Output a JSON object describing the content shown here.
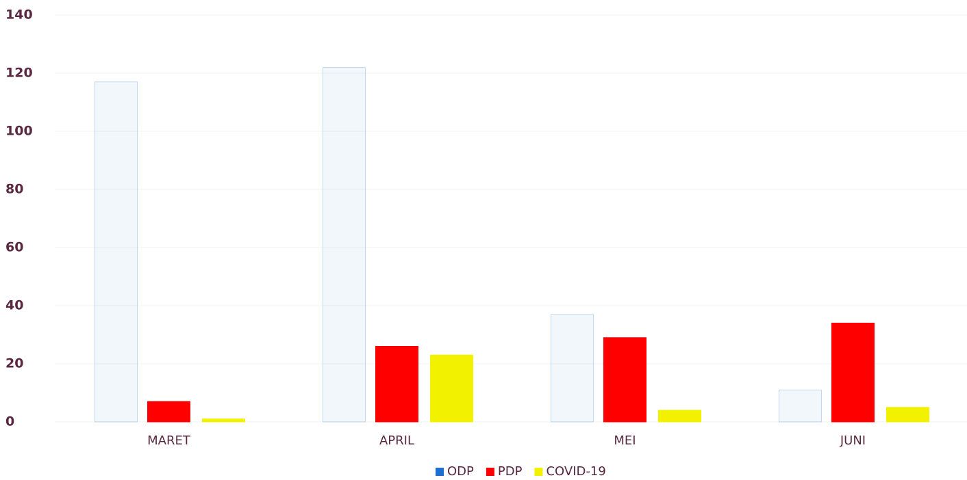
{
  "chart_data": {
    "type": "bar",
    "categories": [
      "MARET",
      "APRIL",
      "MEI",
      "JUNI"
    ],
    "series": [
      {
        "name": "ODP",
        "color": "#1f6fd1",
        "values": [
          117,
          122,
          37,
          11
        ]
      },
      {
        "name": "PDP",
        "color": "#ff0000",
        "values": [
          7,
          26,
          29,
          34
        ]
      },
      {
        "name": "COVID-19",
        "color": "#f2f200",
        "values": [
          1,
          23,
          4,
          5
        ]
      }
    ],
    "ylim": [
      0,
      140
    ],
    "yticks": [
      0,
      20,
      40,
      60,
      80,
      100,
      120,
      140
    ],
    "grid": true,
    "legend": "bottom"
  }
}
